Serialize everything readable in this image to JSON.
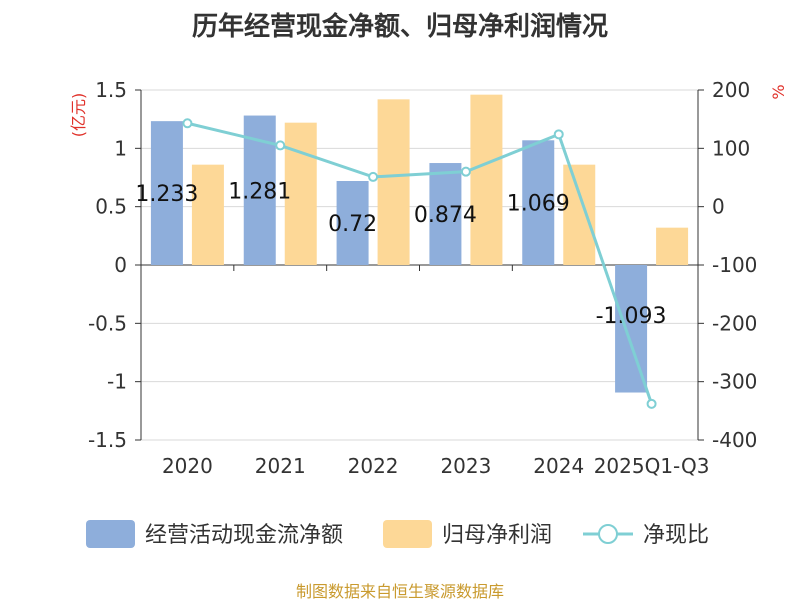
{
  "chart_data": {
    "type": "bar",
    "title": "历年经营现金净额、归母净利润情况",
    "categories": [
      "2020",
      "2021",
      "2022",
      "2023",
      "2024",
      "2025Q1-Q3"
    ],
    "series": [
      {
        "name": "经营活动现金流净额",
        "kind": "bar",
        "axis": "left",
        "color": "#8eaedb",
        "values": [
          1.233,
          1.281,
          0.72,
          0.874,
          1.069,
          -1.093
        ],
        "labels": [
          "1.233",
          "1.281",
          "0.72",
          "0.874",
          "1.069",
          "-1.093"
        ]
      },
      {
        "name": "归母净利润",
        "kind": "bar",
        "axis": "left",
        "color": "#fdd897",
        "values": [
          0.86,
          1.22,
          1.42,
          1.46,
          0.86,
          0.32
        ]
      },
      {
        "name": "净现比",
        "kind": "line",
        "axis": "right",
        "color": "#7fcfd4",
        "values": [
          143,
          105,
          51,
          60,
          124,
          -338
        ]
      }
    ],
    "y_left": {
      "unit": "(亿元)",
      "range": [
        -1.5,
        1.5
      ],
      "ticks": [
        1.5,
        1,
        0.5,
        0,
        -0.5,
        -1,
        -1.5
      ],
      "tick_labels": [
        "1.5",
        "1",
        "0.5",
        "0",
        "-0.5",
        "-1",
        "-1.5"
      ]
    },
    "y_right": {
      "unit": "%",
      "range": [
        -400,
        200
      ],
      "ticks": [
        200,
        100,
        0,
        -100,
        -200,
        -300,
        -400
      ],
      "tick_labels": [
        "200",
        "100",
        "0",
        "-100",
        "-200",
        "-300",
        "-400"
      ]
    },
    "grid": true,
    "legend_position": "bottom",
    "source": "制图数据来自恒生聚源数据库"
  }
}
